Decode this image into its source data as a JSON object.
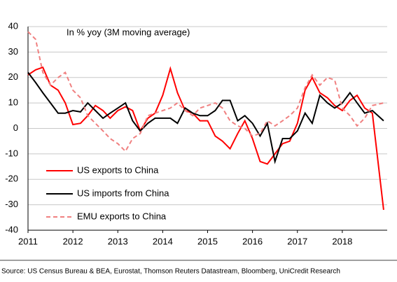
{
  "chart_data": {
    "type": "line",
    "title": "In % yoy (3M moving average)",
    "source": "Source: US Census Bureau & BEA, Eurostat, Thomson Reuters Datastream, Bloomberg, UniCredit Research",
    "x": [
      2011.0,
      2011.17,
      2011.33,
      2011.5,
      2011.67,
      2011.83,
      2012.0,
      2012.17,
      2012.33,
      2012.5,
      2012.67,
      2012.83,
      2013.0,
      2013.17,
      2013.33,
      2013.5,
      2013.67,
      2013.83,
      2014.0,
      2014.17,
      2014.33,
      2014.5,
      2014.67,
      2014.83,
      2015.0,
      2015.17,
      2015.33,
      2015.5,
      2015.67,
      2015.83,
      2016.0,
      2016.17,
      2016.33,
      2016.5,
      2016.67,
      2016.83,
      2017.0,
      2017.17,
      2017.33,
      2017.5,
      2017.67,
      2017.83,
      2018.0,
      2018.17,
      2018.33,
      2018.5,
      2018.67,
      2018.92
    ],
    "xlim": [
      2011,
      2019
    ],
    "xticks": [
      2011,
      2012,
      2013,
      2014,
      2015,
      2016,
      2017,
      2018
    ],
    "ylim": [
      -40,
      40
    ],
    "yticks": [
      -40,
      -30,
      -20,
      -10,
      0,
      10,
      20,
      30,
      40
    ],
    "grid": true,
    "series": [
      {
        "name": "US exports to China",
        "color": "#ff0000",
        "dash": false,
        "values": [
          21,
          23,
          24,
          17,
          15,
          10,
          1.5,
          2,
          5,
          9,
          7,
          4,
          7,
          8.5,
          7,
          -1,
          4,
          6,
          13,
          23.5,
          14,
          7,
          6,
          3,
          3,
          -3,
          -5,
          -8,
          -2,
          3,
          -4,
          -13,
          -14,
          -10,
          -6,
          -5,
          2,
          15,
          20,
          14,
          12,
          9,
          7,
          11,
          13,
          8,
          6,
          -32
        ]
      },
      {
        "name": "US imports from China",
        "color": "#000000",
        "dash": false,
        "values": [
          22,
          18,
          14,
          10,
          6,
          6,
          7,
          6.5,
          10,
          7,
          4,
          6,
          8,
          10,
          3,
          -1,
          2,
          4,
          4,
          4,
          2,
          8,
          6,
          5,
          5,
          7,
          11,
          11,
          3,
          5,
          2,
          -3,
          2,
          -13,
          -4,
          -4,
          -1,
          6,
          2,
          13,
          10,
          8,
          10,
          14,
          10,
          6,
          7,
          3
        ]
      },
      {
        "name": "EMU exports to China",
        "color": "#f08080",
        "dash": true,
        "values": [
          38,
          35,
          22,
          17,
          20,
          22,
          15,
          12,
          5,
          2,
          -1,
          -4,
          -6,
          -9,
          -4,
          -2,
          5,
          6,
          7,
          8,
          10,
          7,
          5,
          8,
          9,
          10,
          8,
          3,
          1,
          0,
          -3,
          -2,
          3,
          1,
          3,
          5,
          8,
          16,
          21,
          17,
          20,
          19,
          8,
          5,
          1,
          4,
          9,
          10
        ]
      }
    ]
  }
}
